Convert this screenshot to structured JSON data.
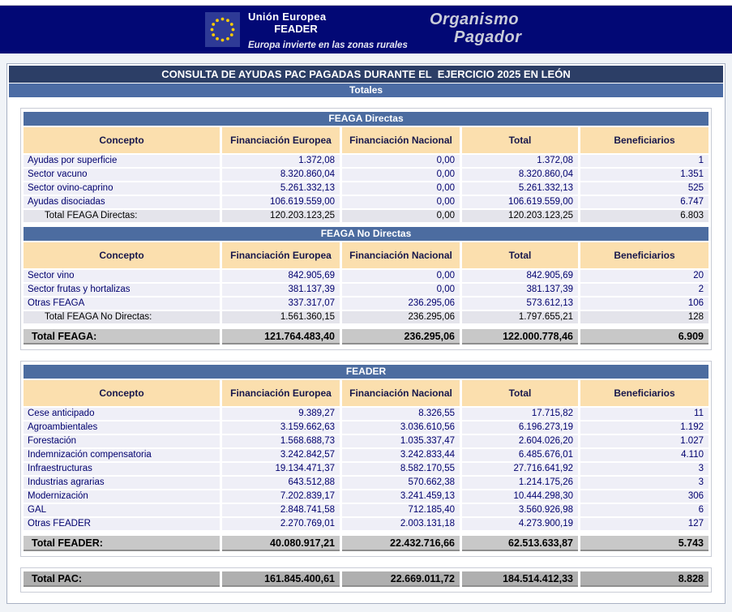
{
  "header": {
    "eu_label_line1": "Unión Europea",
    "eu_label_line2": "FEADER",
    "eu_tagline": "Europa invierte en las zonas rurales",
    "org_line1": "Organismo",
    "org_line2": "Pagador"
  },
  "title": "CONSULTA DE AYUDAS PAC PAGADAS DURANTE EL  EJERCICIO 2025 EN LEÓN",
  "subtitle": "Totales",
  "columns": [
    "Concepto",
    "Financiación Europea",
    "Financiación Nacional",
    "Total",
    "Beneficiarios"
  ],
  "feaga_directas": {
    "section_title": "FEAGA Directas",
    "rows": [
      [
        "Ayudas por superficie",
        "1.372,08",
        "0,00",
        "1.372,08",
        "1"
      ],
      [
        "Sector vacuno",
        "8.320.860,04",
        "0,00",
        "8.320.860,04",
        "1.351"
      ],
      [
        "Sector ovino-caprino",
        "5.261.332,13",
        "0,00",
        "5.261.332,13",
        "525"
      ],
      [
        "Ayudas disociadas",
        "106.619.559,00",
        "0,00",
        "106.619.559,00",
        "6.747"
      ]
    ],
    "subtotal_rows": [
      [
        "Total FEAGA Directas:",
        "120.203.123,25",
        "0,00",
        "120.203.123,25",
        "6.803"
      ]
    ]
  },
  "feaga_no_directas": {
    "section_title": "FEAGA No Directas",
    "rows": [
      [
        "Sector vino",
        "842.905,69",
        "0,00",
        "842.905,69",
        "20"
      ],
      [
        "Sector frutas y hortalizas",
        "381.137,39",
        "0,00",
        "381.137,39",
        "2"
      ],
      [
        "Otras FEAGA",
        "337.317,07",
        "236.295,06",
        "573.612,13",
        "106"
      ]
    ],
    "subtotal_rows": [
      [
        "Total FEAGA No Directas:",
        "1.561.360,15",
        "236.295,06",
        "1.797.655,21",
        "128"
      ]
    ]
  },
  "total_feaga_rows": [
    [
      "Total FEAGA:",
      "121.764.483,40",
      "236.295,06",
      "122.000.778,46",
      "6.909"
    ]
  ],
  "feader": {
    "section_title": "FEADER",
    "rows": [
      [
        "Cese anticipado",
        "9.389,27",
        "8.326,55",
        "17.715,82",
        "11"
      ],
      [
        "Agroambientales",
        "3.159.662,63",
        "3.036.610,56",
        "6.196.273,19",
        "1.192"
      ],
      [
        "Forestación",
        "1.568.688,73",
        "1.035.337,47",
        "2.604.026,20",
        "1.027"
      ],
      [
        "Indemnización compensatoria",
        "3.242.842,57",
        "3.242.833,44",
        "6.485.676,01",
        "4.110"
      ],
      [
        "Infraestructuras",
        "19.134.471,37",
        "8.582.170,55",
        "27.716.641,92",
        "3"
      ],
      [
        "Industrias agrarias",
        "643.512,88",
        "570.662,38",
        "1.214.175,26",
        "3"
      ],
      [
        "Modernización",
        "7.202.839,17",
        "3.241.459,13",
        "10.444.298,30",
        "306"
      ],
      [
        "GAL",
        "2.848.741,58",
        "712.185,40",
        "3.560.926,98",
        "6"
      ],
      [
        "Otras FEADER",
        "2.270.769,01",
        "2.003.131,18",
        "4.273.900,19",
        "127"
      ]
    ],
    "subtotal_rows": [
      [
        "Total FEADER:",
        "40.080.917,21",
        "22.432.716,66",
        "62.513.633,87",
        "5.743"
      ]
    ]
  },
  "total_pac_rows": [
    [
      "Total PAC:",
      "161.845.400,61",
      "22.669.011,72",
      "184.514.412,33",
      "8.828"
    ]
  ],
  "colors": {
    "navbar": "#020875",
    "title_bar": "#2C3E66",
    "subtitle_bar": "#4C6CA4",
    "section_bar": "#4C6CA0",
    "column_header_bg": "#FBDFAE",
    "row_bg": "#EFEFF7",
    "row_text": "#00006E",
    "subtotal_bg": "#E4E4EB",
    "grand_total_bg": "#C8C8C8",
    "pac_total_bg": "#AFAFAF",
    "eu_flag_star": "#FFCC00"
  }
}
